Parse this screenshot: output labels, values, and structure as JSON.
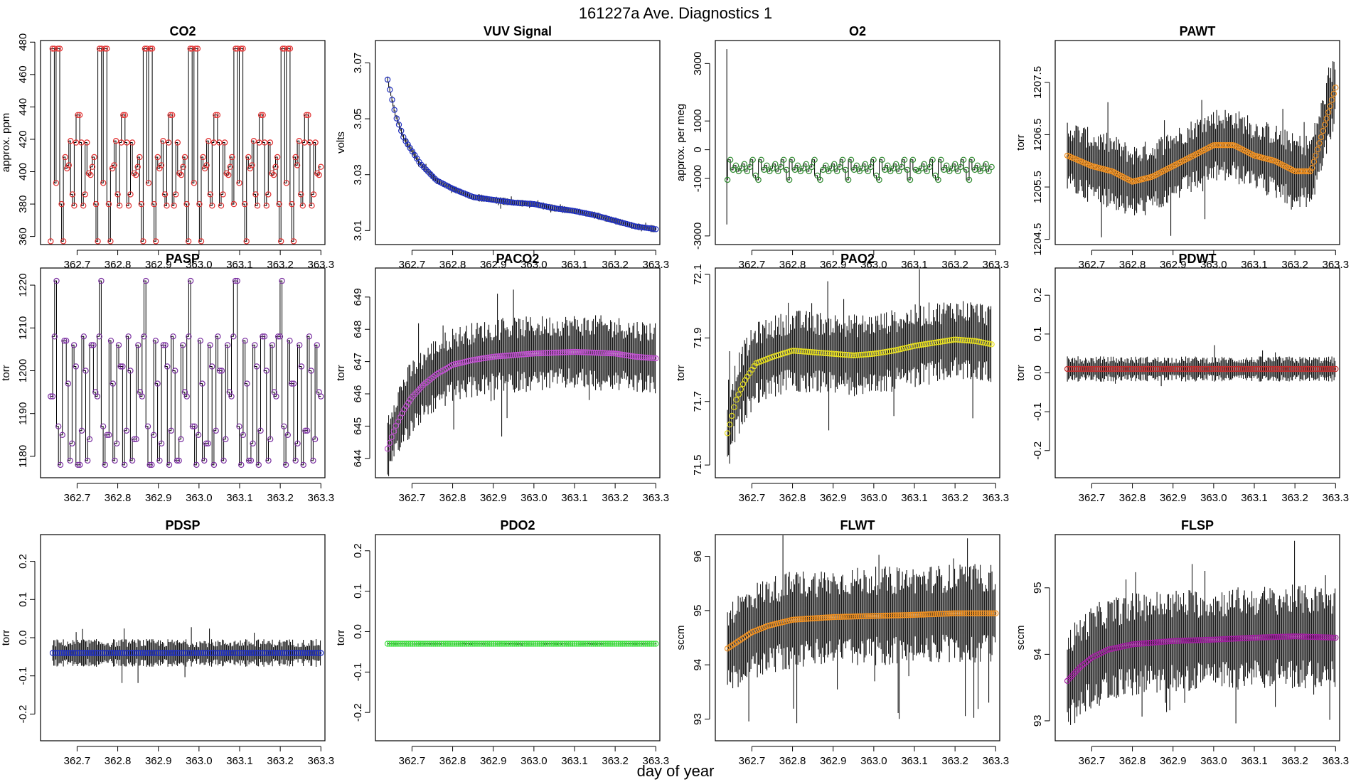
{
  "figure": {
    "title": "161227a   Ave. Diagnostics 1",
    "xlabel": "day of year"
  },
  "chart_data": [
    {
      "type": "line",
      "title": "CO2",
      "ylabel": "approx. ppm",
      "ylim": [
        355,
        481
      ],
      "yticks": [
        360,
        380,
        400,
        420,
        440,
        460,
        480
      ],
      "xlim": [
        362.61,
        363.31
      ],
      "xticks": [
        362.7,
        362.8,
        362.9,
        363.0,
        363.1,
        363.2,
        363.3
      ],
      "marker_color": "#e03030",
      "spread": 0,
      "pattern": [
        357,
        476,
        476,
        393,
        476,
        476,
        380,
        357,
        409,
        402,
        404,
        419,
        386,
        379,
        418,
        435,
        435,
        418,
        379,
        386,
        418,
        399,
        398,
        403,
        409,
        380
      ],
      "cycles": 5.9,
      "start": 362.635,
      "end": 363.3,
      "n_points": 150
    },
    {
      "type": "line",
      "title": "VUV Signal",
      "ylabel": "volts",
      "ylim": [
        3.005,
        3.078
      ],
      "yticks": [
        3.01,
        3.03,
        3.05,
        3.07
      ],
      "xlim": [
        362.61,
        363.31
      ],
      "xticks": [
        362.7,
        362.8,
        362.9,
        363.0,
        363.1,
        363.2,
        363.3
      ],
      "marker_color": "#2030c0",
      "spread": 0.001,
      "key_x": [
        362.64,
        362.66,
        362.68,
        362.72,
        362.76,
        362.8,
        362.85,
        362.9,
        362.95,
        363.0,
        363.05,
        363.1,
        363.15,
        363.2,
        363.25,
        363.3
      ],
      "key_y": [
        3.064,
        3.051,
        3.043,
        3.034,
        3.028,
        3.025,
        3.022,
        3.021,
        3.02,
        3.0195,
        3.018,
        3.017,
        3.0155,
        3.0135,
        3.0115,
        3.0105
      ],
      "start": 362.64,
      "end": 363.3,
      "n_points": 120
    },
    {
      "type": "line",
      "title": "O2",
      "ylabel": "approx. per meg",
      "ylim": [
        -3300,
        3800
      ],
      "yticks": [
        -3000,
        -1000,
        0,
        1000,
        3000
      ],
      "xlim": [
        362.61,
        363.31
      ],
      "xticks": [
        362.7,
        362.8,
        362.9,
        363.0,
        363.1,
        363.2,
        363.3
      ],
      "marker_color": "#2e8a2e",
      "spread": 0,
      "pattern": [
        -1050,
        -350,
        -700,
        -550,
        -750,
        -650,
        -500,
        -750,
        -600,
        -350,
        -900,
        -1050,
        -350,
        -700,
        -550,
        -750,
        -650,
        -500,
        -750,
        -600,
        -350,
        -700
      ],
      "cycles": 4.4,
      "start": 362.64,
      "end": 363.29,
      "n_points": 95
    },
    {
      "type": "line",
      "title": "PAWT",
      "ylabel": "torr",
      "ylim": [
        1204.4,
        1208.3
      ],
      "yticks": [
        1204.5,
        1205.5,
        1206.5,
        1207.5
      ],
      "xlim": [
        362.61,
        363.31
      ],
      "xticks": [
        362.7,
        362.8,
        362.9,
        363.0,
        363.1,
        363.2,
        363.3
      ],
      "marker_color": "#f09020",
      "spread": 0.55,
      "key_x": [
        362.64,
        362.7,
        362.75,
        362.8,
        362.85,
        362.9,
        362.95,
        363.0,
        363.05,
        363.1,
        363.15,
        363.2,
        363.24,
        363.27,
        363.3
      ],
      "key_y": [
        1206.1,
        1205.9,
        1205.8,
        1205.6,
        1205.7,
        1205.9,
        1206.1,
        1206.3,
        1206.3,
        1206.1,
        1206.0,
        1205.8,
        1205.8,
        1206.6,
        1207.4
      ],
      "start": 362.64,
      "end": 363.3,
      "n_points": 150
    },
    {
      "type": "line",
      "title": "PASP",
      "ylabel": "torr",
      "ylim": [
        1175,
        1224
      ],
      "yticks": [
        1180,
        1190,
        1200,
        1210,
        1220
      ],
      "xlim": [
        362.61,
        363.31
      ],
      "xticks": [
        362.7,
        362.8,
        362.9,
        363.0,
        363.1,
        363.2,
        363.3
      ],
      "marker_color": "#7a2fa0",
      "spread": 0,
      "pattern": [
        1194,
        1208,
        1221,
        1187,
        1178,
        1185,
        1207,
        1197,
        1179,
        1183,
        1206,
        1201,
        1178,
        1186,
        1208,
        1200,
        1179,
        1184,
        1206,
        1195
      ],
      "cycles": 6,
      "start": 362.635,
      "end": 363.3,
      "n_points": 140
    },
    {
      "type": "line",
      "title": "PACO2",
      "ylabel": "torr",
      "ylim": [
        643.4,
        649.9
      ],
      "yticks": [
        644,
        645,
        646,
        647,
        648,
        649
      ],
      "xlim": [
        362.61,
        363.31
      ],
      "xticks": [
        362.7,
        362.8,
        362.9,
        363.0,
        363.1,
        363.2,
        363.3
      ],
      "marker_color": "#c050d0",
      "spread": 0.9,
      "key_x": [
        362.64,
        362.66,
        362.68,
        362.7,
        362.73,
        362.76,
        362.8,
        362.85,
        362.9,
        363.0,
        363.1,
        363.2,
        363.25,
        363.3
      ],
      "key_y": [
        644.3,
        645.0,
        645.5,
        645.9,
        646.3,
        646.6,
        646.9,
        647.05,
        647.15,
        647.25,
        647.3,
        647.25,
        647.15,
        647.1
      ],
      "start": 362.64,
      "end": 363.3,
      "n_points": 130
    },
    {
      "type": "line",
      "title": "PAO2",
      "ylabel": "torr",
      "ylim": [
        71.46,
        72.12
      ],
      "yticks": [
        71.5,
        71.7,
        71.9,
        72.1
      ],
      "xlim": [
        362.61,
        363.31
      ],
      "xticks": [
        362.7,
        362.8,
        362.9,
        363.0,
        363.1,
        363.2,
        363.3
      ],
      "marker_color": "#e8e020",
      "spread": 0.1,
      "key_x": [
        362.64,
        362.66,
        362.68,
        362.71,
        362.75,
        362.8,
        362.85,
        362.9,
        362.95,
        363.0,
        363.05,
        363.1,
        363.15,
        363.2,
        363.25,
        363.29
      ],
      "key_y": [
        71.6,
        71.7,
        71.76,
        71.82,
        71.84,
        71.86,
        71.855,
        71.85,
        71.845,
        71.85,
        71.86,
        71.875,
        71.885,
        71.895,
        71.89,
        71.88
      ],
      "start": 362.64,
      "end": 363.29,
      "n_points": 120
    },
    {
      "type": "line",
      "title": "PDWT",
      "ylabel": "torr",
      "ylim": [
        -0.27,
        0.27
      ],
      "yticks": [
        -0.2,
        -0.1,
        0.0,
        0.1,
        0.2
      ],
      "xlim": [
        362.61,
        363.31
      ],
      "xticks": [
        362.7,
        362.8,
        362.9,
        363.0,
        363.1,
        363.2,
        363.3
      ],
      "marker_color": "#c03030",
      "spread": 0.025,
      "key_x": [
        362.64,
        363.3
      ],
      "key_y": [
        0.01,
        0.01
      ],
      "start": 362.64,
      "end": 363.3,
      "n_points": 120
    },
    {
      "type": "line",
      "title": "PDSP",
      "ylabel": "torr",
      "ylim": [
        -0.27,
        0.27
      ],
      "yticks": [
        -0.2,
        -0.1,
        0.0,
        0.1,
        0.2
      ],
      "xlim": [
        362.61,
        363.31
      ],
      "xticks": [
        362.7,
        362.8,
        362.9,
        363.0,
        363.1,
        363.2,
        363.3
      ],
      "marker_color": "#2030c0",
      "spread": 0.028,
      "key_x": [
        362.64,
        363.3
      ],
      "key_y": [
        -0.04,
        -0.04
      ],
      "start": 362.64,
      "end": 363.3,
      "n_points": 120
    },
    {
      "type": "line",
      "title": "PDO2",
      "ylabel": "torr",
      "ylim": [
        -0.27,
        0.24
      ],
      "yticks": [
        -0.2,
        -0.1,
        0.0,
        0.1,
        0.2
      ],
      "xlim": [
        362.61,
        363.31
      ],
      "xticks": [
        362.7,
        362.8,
        362.9,
        363.0,
        363.1,
        363.2,
        363.3
      ],
      "marker_color": "#40e040",
      "spread": 0.002,
      "key_x": [
        362.64,
        363.3
      ],
      "key_y": [
        -0.03,
        -0.03
      ],
      "start": 362.64,
      "end": 363.3,
      "n_points": 130
    },
    {
      "type": "line",
      "title": "FLWT",
      "ylabel": "sccm",
      "ylim": [
        92.6,
        96.4
      ],
      "yticks": [
        93,
        94,
        95,
        96
      ],
      "xlim": [
        362.61,
        363.31
      ],
      "xticks": [
        362.7,
        362.8,
        362.9,
        363.0,
        363.1,
        363.2,
        363.3
      ],
      "marker_color": "#f09020",
      "spread": 0.7,
      "key_x": [
        362.64,
        362.67,
        362.7,
        362.74,
        362.8,
        362.9,
        363.0,
        363.1,
        363.2,
        363.3
      ],
      "key_y": [
        94.3,
        94.45,
        94.6,
        94.72,
        94.83,
        94.88,
        94.9,
        94.92,
        94.95,
        94.95
      ],
      "start": 362.64,
      "end": 363.3,
      "n_points": 130
    },
    {
      "type": "line",
      "title": "FLSP",
      "ylabel": "sccm",
      "ylim": [
        92.7,
        95.8
      ],
      "yticks": [
        93.0,
        94.0,
        95.0
      ],
      "xlim": [
        362.61,
        363.31
      ],
      "xticks": [
        362.7,
        362.8,
        362.9,
        363.0,
        363.1,
        363.2,
        363.3
      ],
      "marker_color": "#a020a0",
      "spread": 0.6,
      "key_x": [
        362.64,
        362.67,
        362.7,
        362.74,
        362.8,
        362.9,
        363.0,
        363.1,
        363.2,
        363.3
      ],
      "key_y": [
        93.6,
        93.8,
        93.95,
        94.07,
        94.15,
        94.2,
        94.22,
        94.25,
        94.27,
        94.25
      ],
      "start": 362.64,
      "end": 363.3,
      "n_points": 130
    }
  ]
}
